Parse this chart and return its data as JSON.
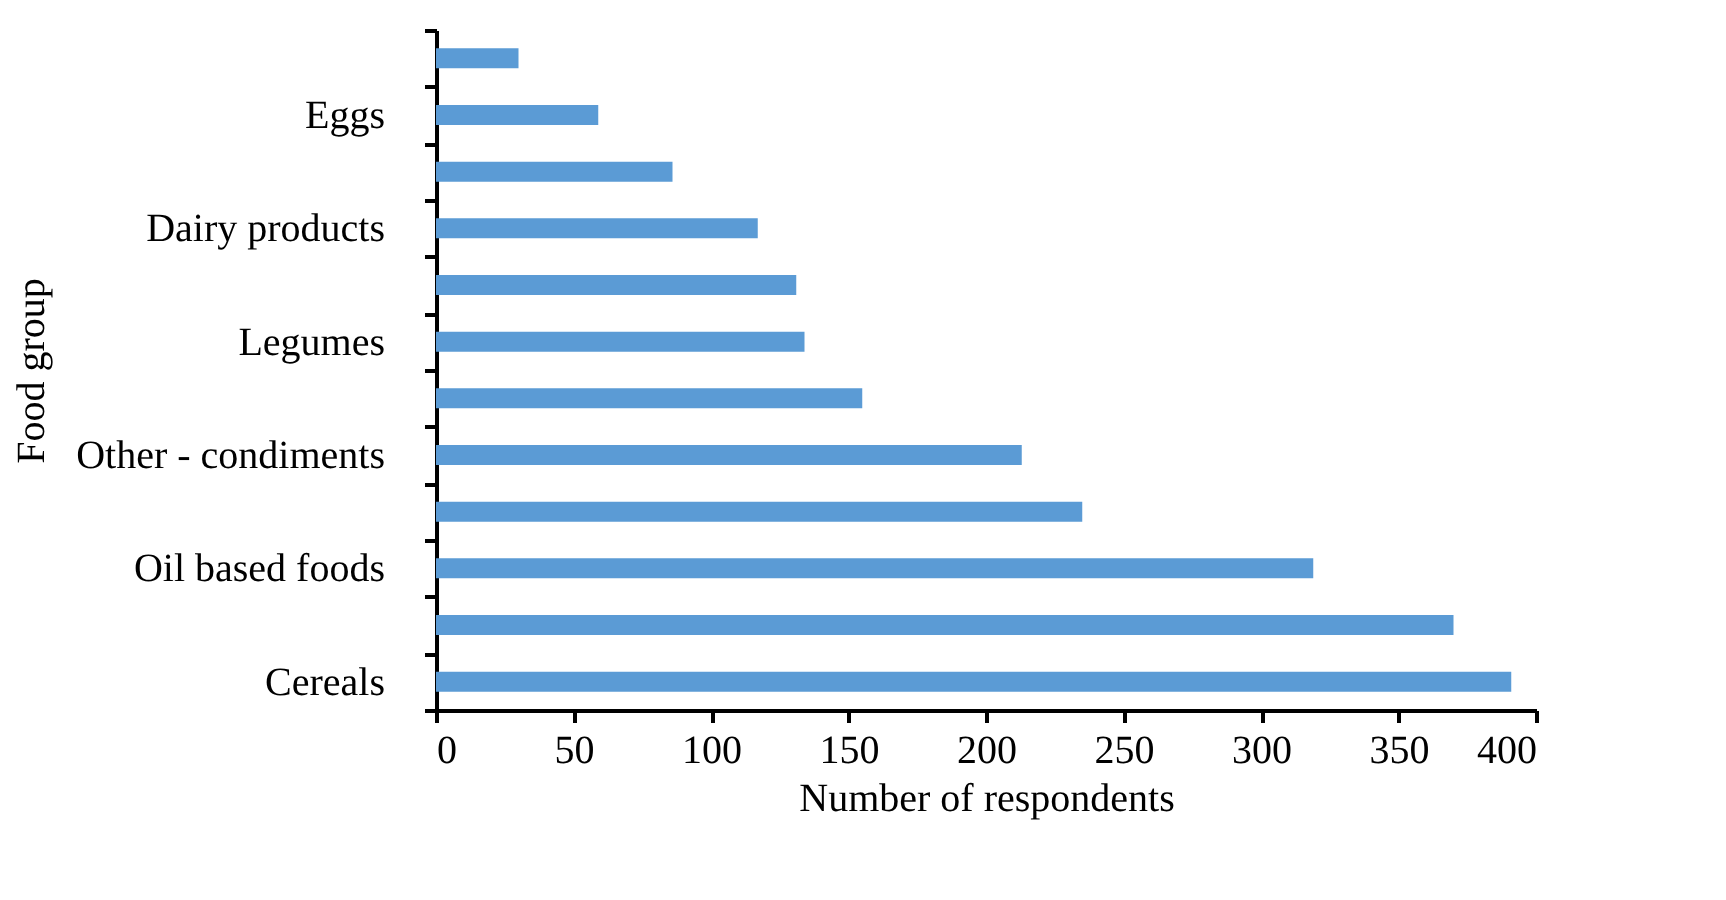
{
  "chart_data": {
    "type": "bar",
    "orientation": "horizontal",
    "xlabel": "Number of respondents",
    "ylabel": "Food group",
    "categories": [
      null,
      "Eggs",
      null,
      "Dairy products",
      null,
      "Legumes",
      null,
      "Other - condiments",
      null,
      "Oil based foods",
      null,
      "Cereals"
    ],
    "values": [
      30,
      59,
      86,
      117,
      131,
      134,
      155,
      213,
      235,
      319,
      370,
      391
    ],
    "color": "#5b9bd5",
    "xlim": [
      0,
      400
    ],
    "xticks": [
      0,
      50,
      100,
      150,
      200,
      250,
      300,
      350,
      400
    ],
    "grid": false
  }
}
